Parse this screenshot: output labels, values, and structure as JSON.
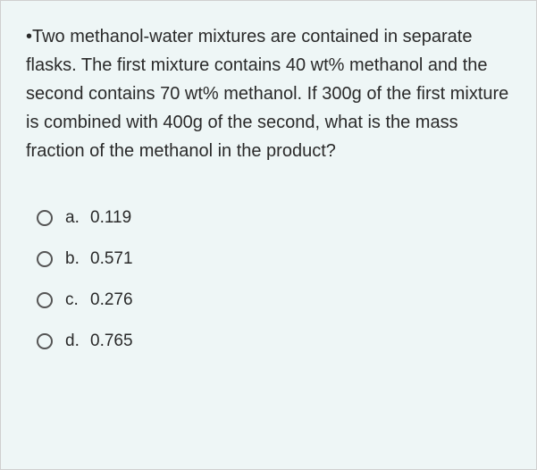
{
  "question": {
    "text": "•Two methanol-water mixtures are contained in separate flasks. The first mixture contains 40 wt% methanol and the second contains 70 wt% methanol. If 300g of the first mixture is combined with 400g of the second, what is the mass fraction of the methanol in the product?"
  },
  "options": [
    {
      "label": "a.",
      "value": "0.119"
    },
    {
      "label": "b.",
      "value": "0.571"
    },
    {
      "label": "c.",
      "value": "0.276"
    },
    {
      "label": "d.",
      "value": "0.765"
    }
  ],
  "style": {
    "background_color": "#eef6f6",
    "text_color": "#2a2a2a",
    "question_fontsize": 20,
    "option_fontsize": 19,
    "radio_border_color": "#555555"
  }
}
